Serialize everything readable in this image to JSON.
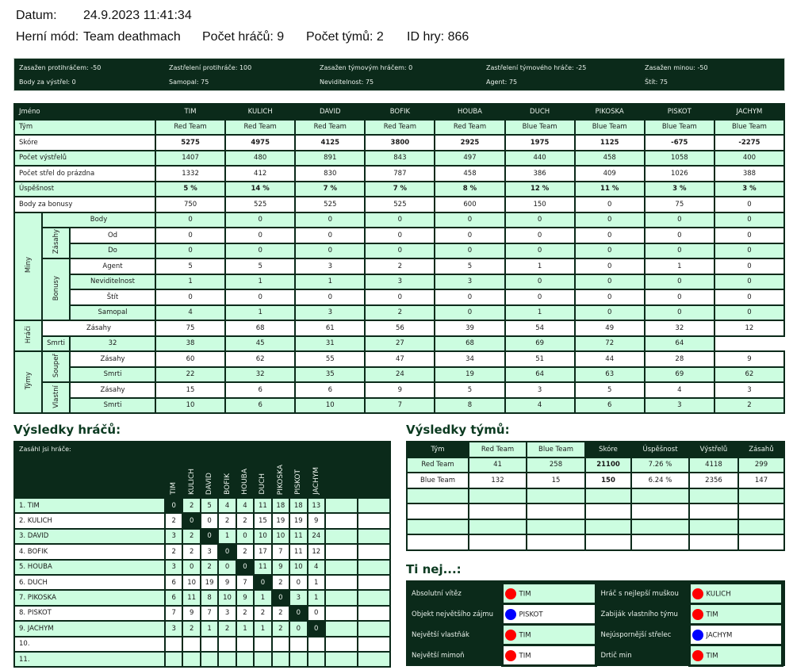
{
  "header": {
    "date_label": "Datum:",
    "date_value": "24.9.2023 11:41:34",
    "mode_label": "Herní mód:",
    "mode_value": "Team deathmach",
    "players_count": "Počet hráčů: 9",
    "teams_count": "Počet týmů: 2",
    "game_id": "ID hry: 866"
  },
  "settings": [
    "Zasažen protihráčem: -50",
    "Zastřelení protihráče: 100",
    "Zasažen týmovým hráčem: 0",
    "Zastřelení týmového hráče: -25",
    "Zasažen minou: -50",
    "Body za výstřel: 0",
    "Samopal: 75",
    "Neviditelnost: 75",
    "Agent: 75",
    "Štít: 75"
  ],
  "main": {
    "name_label": "Jméno",
    "players": [
      "TIM",
      "KULICH",
      "DAVID",
      "BOFIK",
      "HOUBA",
      "DUCH",
      "PIKOSKA",
      "PISKOT",
      "JACHYM"
    ],
    "rows": [
      {
        "label": "Tým",
        "bold": false,
        "values": [
          "Red Team",
          "Red Team",
          "Red Team",
          "Red Team",
          "Red Team",
          "Blue Team",
          "Blue Team",
          "Blue Team",
          "Blue Team"
        ]
      },
      {
        "label": "Skóre",
        "bold": true,
        "values": [
          "5275",
          "4975",
          "4125",
          "3800",
          "2925",
          "1975",
          "1125",
          "-675",
          "-2275"
        ]
      },
      {
        "label": "Počet výstřelů",
        "bold": false,
        "values": [
          "1407",
          "480",
          "891",
          "843",
          "497",
          "440",
          "458",
          "1058",
          "400"
        ]
      },
      {
        "label": "Počet střel do prázdna",
        "bold": false,
        "values": [
          "1332",
          "412",
          "830",
          "787",
          "458",
          "386",
          "409",
          "1026",
          "388"
        ]
      },
      {
        "label": "Úspěšnost",
        "bold": true,
        "values": [
          "5 %",
          "14 %",
          "7 %",
          "7 %",
          "8 %",
          "12 %",
          "11 %",
          "3 %",
          "3 %"
        ]
      },
      {
        "label": "Body za bonusy",
        "bold": false,
        "values": [
          "750",
          "525",
          "525",
          "525",
          "600",
          "150",
          "0",
          "75",
          "0"
        ]
      }
    ],
    "groups": {
      "miny": "Miny",
      "zasahy": "Zásahy",
      "bonusy": "Bonusy",
      "hraci": "Hráči",
      "tymy": "Týmy",
      "soupr": "Soupeř",
      "vlastni": "Vlastní"
    },
    "detail": [
      {
        "label": "Body",
        "values": [
          "0",
          "0",
          "0",
          "0",
          "0",
          "0",
          "0",
          "0",
          "0"
        ]
      },
      {
        "label": "Od",
        "values": [
          "0",
          "0",
          "0",
          "0",
          "0",
          "0",
          "0",
          "0",
          "0"
        ]
      },
      {
        "label": "Do",
        "values": [
          "0",
          "0",
          "0",
          "0",
          "0",
          "0",
          "0",
          "0",
          "0"
        ]
      },
      {
        "label": "Agent",
        "values": [
          "5",
          "5",
          "3",
          "2",
          "5",
          "1",
          "0",
          "1",
          "0"
        ]
      },
      {
        "label": "Neviditelnost",
        "values": [
          "1",
          "1",
          "1",
          "3",
          "3",
          "0",
          "0",
          "0",
          "0"
        ]
      },
      {
        "label": "Štít",
        "values": [
          "0",
          "0",
          "0",
          "0",
          "0",
          "0",
          "0",
          "0",
          "0"
        ]
      },
      {
        "label": "Samopal",
        "values": [
          "4",
          "1",
          "3",
          "2",
          "0",
          "1",
          "0",
          "0",
          "0"
        ]
      },
      {
        "label": "Zásahy",
        "values": [
          "75",
          "68",
          "61",
          "56",
          "39",
          "54",
          "49",
          "32",
          "12"
        ]
      },
      {
        "label": "Smrti",
        "values": [
          "32",
          "38",
          "45",
          "31",
          "27",
          "68",
          "69",
          "72",
          "64"
        ]
      },
      {
        "label": "Zásahy",
        "values": [
          "60",
          "62",
          "55",
          "47",
          "34",
          "51",
          "44",
          "28",
          "9"
        ]
      },
      {
        "label": "Smrti",
        "values": [
          "22",
          "32",
          "35",
          "24",
          "19",
          "64",
          "63",
          "69",
          "62"
        ]
      },
      {
        "label": "Zásahy",
        "values": [
          "15",
          "6",
          "6",
          "9",
          "5",
          "3",
          "5",
          "4",
          "3"
        ]
      },
      {
        "label": "Smrti",
        "values": [
          "10",
          "6",
          "10",
          "7",
          "8",
          "4",
          "6",
          "3",
          "2"
        ]
      }
    ]
  },
  "player_results": {
    "title": "Výsledky hráčů:",
    "corner_label": "Zasáhl jsi hráče:",
    "columns": [
      "TIM",
      "KULICH",
      "DAVID",
      "BOFIK",
      "HOUBA",
      "DUCH",
      "PIKOSKA",
      "PISKOT",
      "JACHYM"
    ],
    "rows": [
      {
        "name": "1. TIM",
        "values": [
          "0",
          "2",
          "5",
          "4",
          "4",
          "11",
          "18",
          "18",
          "13"
        ]
      },
      {
        "name": "2. KULICH",
        "values": [
          "2",
          "0",
          "0",
          "2",
          "2",
          "15",
          "19",
          "19",
          "9"
        ]
      },
      {
        "name": "3. DAVID",
        "values": [
          "3",
          "2",
          "0",
          "1",
          "0",
          "10",
          "10",
          "11",
          "24"
        ]
      },
      {
        "name": "4. BOFIK",
        "values": [
          "2",
          "2",
          "3",
          "0",
          "2",
          "17",
          "7",
          "11",
          "12"
        ]
      },
      {
        "name": "5. HOUBA",
        "values": [
          "3",
          "0",
          "2",
          "0",
          "0",
          "11",
          "9",
          "10",
          "4"
        ]
      },
      {
        "name": "6. DUCH",
        "values": [
          "6",
          "10",
          "19",
          "9",
          "7",
          "0",
          "2",
          "0",
          "1"
        ]
      },
      {
        "name": "7. PIKOSKA",
        "values": [
          "6",
          "11",
          "8",
          "10",
          "9",
          "1",
          "0",
          "3",
          "1"
        ]
      },
      {
        "name": "8. PISKOT",
        "values": [
          "7",
          "9",
          "7",
          "3",
          "2",
          "2",
          "2",
          "0",
          "0"
        ]
      },
      {
        "name": "9. JACHYM",
        "values": [
          "3",
          "2",
          "1",
          "2",
          "1",
          "1",
          "2",
          "0",
          "0"
        ]
      },
      {
        "name": "10.",
        "values": []
      },
      {
        "name": "11.",
        "values": []
      }
    ]
  },
  "team_results": {
    "title": "Výsledky týmů:",
    "headers": [
      "Tým",
      "Red Team",
      "Blue Team",
      "Skóre",
      "Úspěšnost",
      "Výstřelů",
      "Zásahů"
    ],
    "rows": [
      [
        "Red Team",
        "41",
        "258",
        "21100",
        "7.26 %",
        "4118",
        "299"
      ],
      [
        "Blue Team",
        "132",
        "15",
        "150",
        "6.24 %",
        "2356",
        "147"
      ],
      [],
      [],
      [],
      []
    ]
  },
  "best": {
    "title": "Ti nej...:",
    "colors": {
      "red": "#ff0000",
      "blue": "#0000ff"
    },
    "items": [
      {
        "label": "Absolutní vítěz",
        "player": "TIM",
        "team": "red"
      },
      {
        "label": "Hráč s nejlepší muškou",
        "player": "KULICH",
        "team": "red"
      },
      {
        "label": "Objekt největšího zájmu",
        "player": "PISKOT",
        "team": "blue"
      },
      {
        "label": "Zabiják vlastního týmu",
        "player": "TIM",
        "team": "red"
      },
      {
        "label": "Největší vlastňák",
        "player": "TIM",
        "team": "red"
      },
      {
        "label": "Nejúspornější střelec",
        "player": "JACHYM",
        "team": "blue"
      },
      {
        "label": "Největší mimoň",
        "player": "TIM",
        "team": "red"
      },
      {
        "label": "Drtič min",
        "player": "TIM",
        "team": "red"
      }
    ]
  }
}
